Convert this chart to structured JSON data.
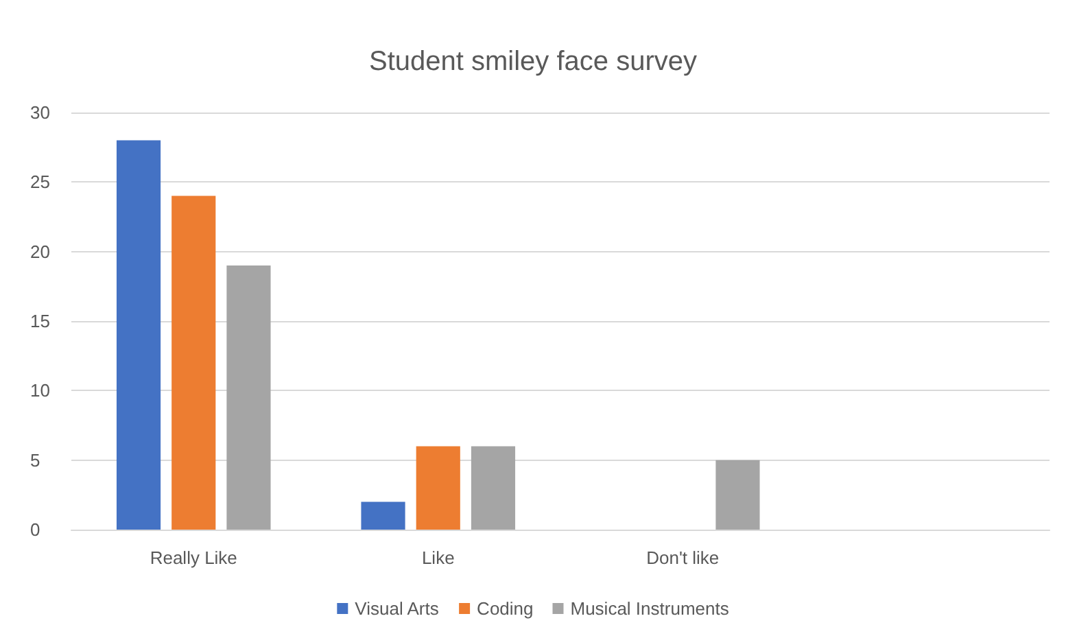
{
  "chart_data": {
    "type": "bar",
    "title": "Student smiley face survey",
    "categories": [
      "Really Like",
      "Like",
      "Don't like",
      null
    ],
    "series": [
      {
        "name": "Visual Arts",
        "color": "#4472c4",
        "values": [
          28,
          2,
          0,
          null
        ]
      },
      {
        "name": "Coding",
        "color": "#ed7d31",
        "values": [
          24,
          6,
          0,
          null
        ]
      },
      {
        "name": "Musical Instruments",
        "color": "#a5a5a5",
        "values": [
          19,
          6,
          5,
          null
        ]
      }
    ],
    "ylim": [
      0,
      30
    ],
    "yticks": [
      0,
      5,
      10,
      15,
      20,
      25,
      30
    ],
    "grid": "y",
    "legend": "bottom"
  }
}
